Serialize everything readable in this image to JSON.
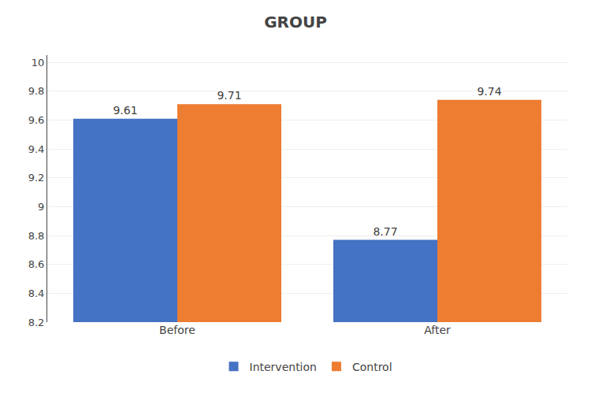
{
  "chart_data": {
    "type": "bar",
    "title": "GROUP",
    "categories": [
      "Before",
      "After"
    ],
    "series": [
      {
        "name": "Intervention",
        "color": "#4472C4",
        "values": [
          9.61,
          8.77
        ]
      },
      {
        "name": "Control",
        "color": "#ED7D31",
        "values": [
          9.71,
          9.74
        ]
      }
    ],
    "ylim": [
      8.2,
      10.05
    ],
    "yticks": [
      8.2,
      8.4,
      8.6,
      8.8,
      9.0,
      9.2,
      9.4,
      9.6,
      9.8,
      10.0
    ],
    "grid": true,
    "legend": "bottom",
    "data_labels": true
  }
}
